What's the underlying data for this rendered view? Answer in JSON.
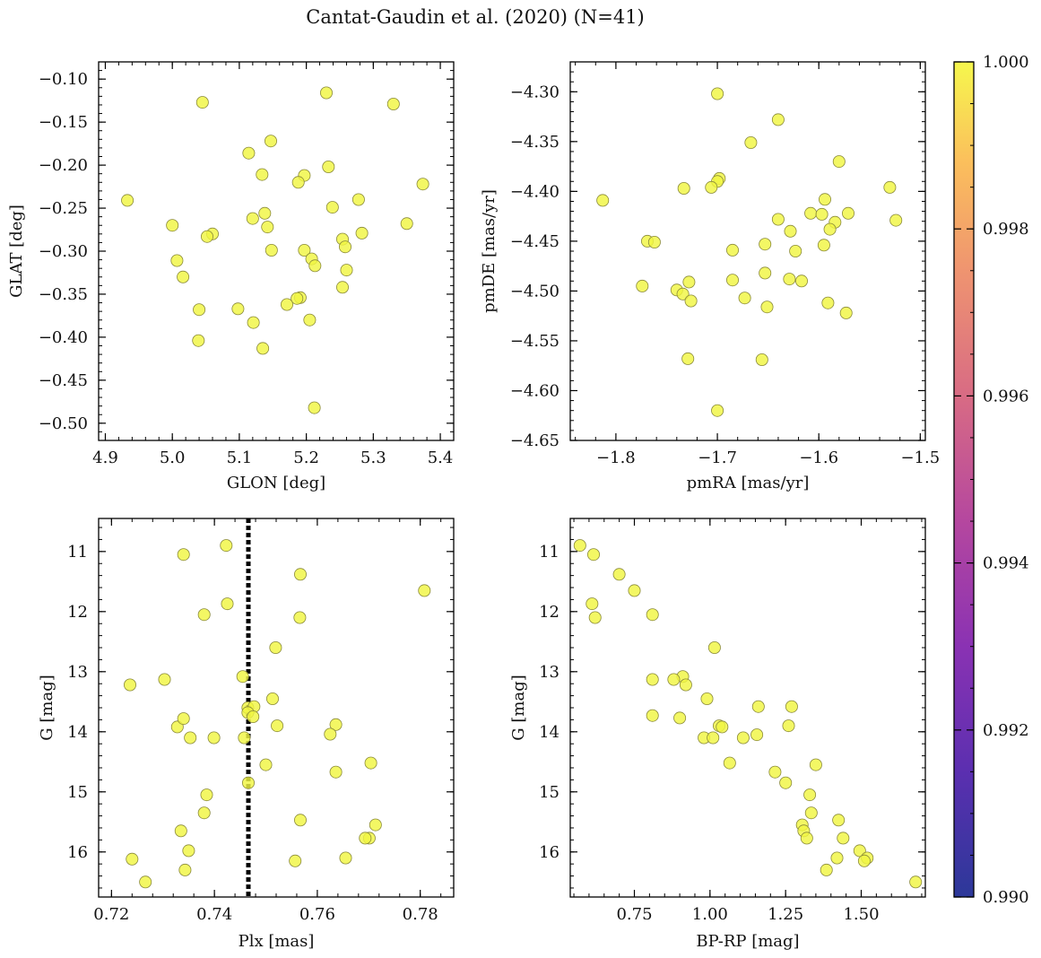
{
  "title": "Cantat-Gaudin et al. (2020) (N=41)",
  "colorbar": {
    "ticks": [
      "0.990",
      "0.992",
      "0.994",
      "0.996",
      "0.998",
      "1.000"
    ],
    "tick_values": [
      0.99,
      0.992,
      0.994,
      0.996,
      0.998,
      1.0
    ],
    "range": [
      0.99,
      1.0
    ],
    "colormap": "plasma"
  },
  "colors": {
    "point_fill": "#f0f542",
    "point_edge": "#8a8a3a",
    "axis": "#000000"
  },
  "chart_data": [
    {
      "type": "scatter",
      "name": "glon-glat",
      "xlabel": "GLON [deg]",
      "ylabel": "GLAT [deg]",
      "xlim": [
        4.89,
        5.42
      ],
      "ylim": [
        -0.52,
        -0.08
      ],
      "xticks": [
        4.9,
        5.0,
        5.1,
        5.2,
        5.3,
        5.4
      ],
      "xtick_labels": [
        "4.9",
        "5.0",
        "5.1",
        "5.2",
        "5.3",
        "5.4"
      ],
      "yticks": [
        -0.1,
        -0.15,
        -0.2,
        -0.25,
        -0.3,
        -0.35,
        -0.4,
        -0.45,
        -0.5
      ],
      "ytick_labels": [
        "−0.10",
        "−0.15",
        "−0.20",
        "−0.25",
        "−0.30",
        "−0.35",
        "−0.40",
        "−0.45",
        "−0.50"
      ],
      "points": [
        [
          4.933,
          -0.241
        ],
        [
          5.045,
          -0.127
        ],
        [
          5.23,
          -0.116
        ],
        [
          5.33,
          -0.129
        ],
        [
          5.147,
          -0.172
        ],
        [
          5.114,
          -0.186
        ],
        [
          5.233,
          -0.202
        ],
        [
          5.134,
          -0.211
        ],
        [
          5.197,
          -0.212
        ],
        [
          5.188,
          -0.22
        ],
        [
          5.374,
          -0.222
        ],
        [
          5.278,
          -0.24
        ],
        [
          5.239,
          -0.249
        ],
        [
          5.138,
          -0.256
        ],
        [
          5.12,
          -0.262
        ],
        [
          5.0,
          -0.27
        ],
        [
          5.142,
          -0.272
        ],
        [
          5.35,
          -0.268
        ],
        [
          5.06,
          -0.28
        ],
        [
          5.052,
          -0.283
        ],
        [
          5.283,
          -0.279
        ],
        [
          5.254,
          -0.286
        ],
        [
          5.258,
          -0.295
        ],
        [
          5.148,
          -0.299
        ],
        [
          5.197,
          -0.299
        ],
        [
          5.007,
          -0.311
        ],
        [
          5.208,
          -0.309
        ],
        [
          5.213,
          -0.317
        ],
        [
          5.26,
          -0.322
        ],
        [
          5.016,
          -0.33
        ],
        [
          5.254,
          -0.342
        ],
        [
          5.191,
          -0.354
        ],
        [
          5.186,
          -0.355
        ],
        [
          5.171,
          -0.362
        ],
        [
          5.04,
          -0.368
        ],
        [
          5.098,
          -0.367
        ],
        [
          5.205,
          -0.38
        ],
        [
          5.121,
          -0.383
        ],
        [
          5.039,
          -0.404
        ],
        [
          5.135,
          -0.413
        ],
        [
          5.212,
          -0.482
        ]
      ]
    },
    {
      "type": "scatter",
      "name": "pmra-pmde",
      "xlabel": "pmRA [mas/yr]",
      "ylabel": "pmDE [mas/yr]",
      "xlim": [
        -1.845,
        -1.495
      ],
      "ylim": [
        -4.65,
        -4.27
      ],
      "xticks": [
        -1.8,
        -1.7,
        -1.6,
        -1.5
      ],
      "xtick_labels": [
        "−1.8",
        "−1.7",
        "−1.6",
        "−1.5"
      ],
      "yticks": [
        -4.3,
        -4.35,
        -4.4,
        -4.45,
        -4.5,
        -4.55,
        -4.6,
        -4.65
      ],
      "ytick_labels": [
        "−4.30",
        "−4.35",
        "−4.40",
        "−4.45",
        "−4.50",
        "−4.55",
        "−4.60",
        "−4.65"
      ],
      "points": [
        [
          -1.7,
          -4.302
        ],
        [
          -1.64,
          -4.328
        ],
        [
          -1.667,
          -4.351
        ],
        [
          -1.58,
          -4.37
        ],
        [
          -1.698,
          -4.387
        ],
        [
          -1.7,
          -4.39
        ],
        [
          -1.706,
          -4.396
        ],
        [
          -1.733,
          -4.397
        ],
        [
          -1.53,
          -4.396
        ],
        [
          -1.813,
          -4.409
        ],
        [
          -1.594,
          -4.408
        ],
        [
          -1.608,
          -4.422
        ],
        [
          -1.597,
          -4.423
        ],
        [
          -1.571,
          -4.422
        ],
        [
          -1.64,
          -4.428
        ],
        [
          -1.524,
          -4.429
        ],
        [
          -1.584,
          -4.431
        ],
        [
          -1.589,
          -4.438
        ],
        [
          -1.628,
          -4.44
        ],
        [
          -1.769,
          -4.45
        ],
        [
          -1.762,
          -4.451
        ],
        [
          -1.653,
          -4.453
        ],
        [
          -1.595,
          -4.454
        ],
        [
          -1.685,
          -4.459
        ],
        [
          -1.623,
          -4.46
        ],
        [
          -1.653,
          -4.482
        ],
        [
          -1.685,
          -4.489
        ],
        [
          -1.629,
          -4.488
        ],
        [
          -1.617,
          -4.49
        ],
        [
          -1.728,
          -4.491
        ],
        [
          -1.774,
          -4.495
        ],
        [
          -1.74,
          -4.499
        ],
        [
          -1.734,
          -4.503
        ],
        [
          -1.673,
          -4.507
        ],
        [
          -1.726,
          -4.51
        ],
        [
          -1.591,
          -4.512
        ],
        [
          -1.651,
          -4.516
        ],
        [
          -1.573,
          -4.522
        ],
        [
          -1.729,
          -4.568
        ],
        [
          -1.656,
          -4.569
        ],
        [
          -1.7,
          -4.62
        ]
      ]
    },
    {
      "type": "scatter",
      "name": "plx-g",
      "xlabel": "Plx [mas]",
      "ylabel": "G [mag]",
      "xlim": [
        0.7175,
        0.7865
      ],
      "ylim": [
        16.75,
        10.45
      ],
      "xticks": [
        0.72,
        0.74,
        0.76,
        0.78
      ],
      "xtick_labels": [
        "0.72",
        "0.74",
        "0.76",
        "0.78"
      ],
      "yticks": [
        11,
        12,
        13,
        14,
        15,
        16
      ],
      "ytick_labels": [
        "11",
        "12",
        "13",
        "14",
        "15",
        "16"
      ],
      "vline": 0.7466,
      "points": [
        [
          0.7423,
          10.9
        ],
        [
          0.734,
          11.05
        ],
        [
          0.7567,
          11.38
        ],
        [
          0.7808,
          11.65
        ],
        [
          0.7425,
          11.87
        ],
        [
          0.738,
          12.05
        ],
        [
          0.7566,
          12.1
        ],
        [
          0.7519,
          12.6
        ],
        [
          0.7455,
          13.08
        ],
        [
          0.7303,
          13.13
        ],
        [
          0.7236,
          13.22
        ],
        [
          0.7513,
          13.45
        ],
        [
          0.7465,
          13.6
        ],
        [
          0.7477,
          13.58
        ],
        [
          0.7465,
          13.68
        ],
        [
          0.7475,
          13.75
        ],
        [
          0.7328,
          13.92
        ],
        [
          0.7522,
          13.9
        ],
        [
          0.7636,
          13.88
        ],
        [
          0.7625,
          14.04
        ],
        [
          0.7353,
          14.1
        ],
        [
          0.7399,
          14.1
        ],
        [
          0.7458,
          14.1
        ],
        [
          0.75,
          14.55
        ],
        [
          0.7704,
          14.52
        ],
        [
          0.7636,
          14.67
        ],
        [
          0.7466,
          14.85
        ],
        [
          0.7385,
          15.05
        ],
        [
          0.738,
          15.35
        ],
        [
          0.7567,
          15.47
        ],
        [
          0.7713,
          15.55
        ],
        [
          0.7335,
          15.65
        ],
        [
          0.7701,
          15.77
        ],
        [
          0.7693,
          15.77
        ],
        [
          0.735,
          15.98
        ],
        [
          0.7655,
          16.1
        ],
        [
          0.724,
          16.12
        ],
        [
          0.7557,
          16.15
        ],
        [
          0.7343,
          16.3
        ],
        [
          0.7266,
          16.5
        ],
        [
          0.734,
          13.78
        ]
      ]
    },
    {
      "type": "scatter",
      "name": "bprp-g",
      "xlabel": "BP-RP [mag]",
      "ylabel": "G [mag]",
      "xlim": [
        0.538,
        1.712
      ],
      "ylim": [
        16.75,
        10.45
      ],
      "xticks": [
        0.75,
        1.0,
        1.25,
        1.5
      ],
      "xtick_labels": [
        "0.75",
        "1.00",
        "1.25",
        "1.50"
      ],
      "yticks": [
        11,
        12,
        13,
        14,
        15,
        16
      ],
      "ytick_labels": [
        "11",
        "12",
        "13",
        "14",
        "15",
        "16"
      ],
      "points": [
        [
          0.57,
          10.9
        ],
        [
          0.615,
          11.05
        ],
        [
          0.7,
          11.38
        ],
        [
          0.75,
          11.65
        ],
        [
          0.61,
          11.87
        ],
        [
          0.81,
          12.05
        ],
        [
          0.62,
          12.1
        ],
        [
          1.015,
          12.6
        ],
        [
          0.91,
          13.08
        ],
        [
          0.88,
          13.13
        ],
        [
          0.81,
          13.13
        ],
        [
          0.92,
          13.22
        ],
        [
          0.99,
          13.45
        ],
        [
          1.16,
          13.58
        ],
        [
          1.27,
          13.58
        ],
        [
          0.81,
          13.73
        ],
        [
          0.9,
          13.77
        ],
        [
          1.03,
          13.9
        ],
        [
          1.04,
          13.92
        ],
        [
          1.26,
          13.9
        ],
        [
          0.98,
          14.1
        ],
        [
          1.01,
          14.1
        ],
        [
          1.11,
          14.1
        ],
        [
          1.155,
          14.05
        ],
        [
          1.35,
          14.55
        ],
        [
          1.065,
          14.52
        ],
        [
          1.215,
          14.67
        ],
        [
          1.25,
          14.85
        ],
        [
          1.33,
          15.05
        ],
        [
          1.335,
          15.35
        ],
        [
          1.425,
          15.47
        ],
        [
          1.305,
          15.55
        ],
        [
          1.31,
          15.65
        ],
        [
          1.32,
          15.77
        ],
        [
          1.44,
          15.77
        ],
        [
          1.495,
          15.98
        ],
        [
          1.52,
          16.1
        ],
        [
          1.51,
          16.15
        ],
        [
          1.385,
          16.3
        ],
        [
          1.68,
          16.5
        ],
        [
          1.42,
          16.1
        ]
      ]
    }
  ]
}
